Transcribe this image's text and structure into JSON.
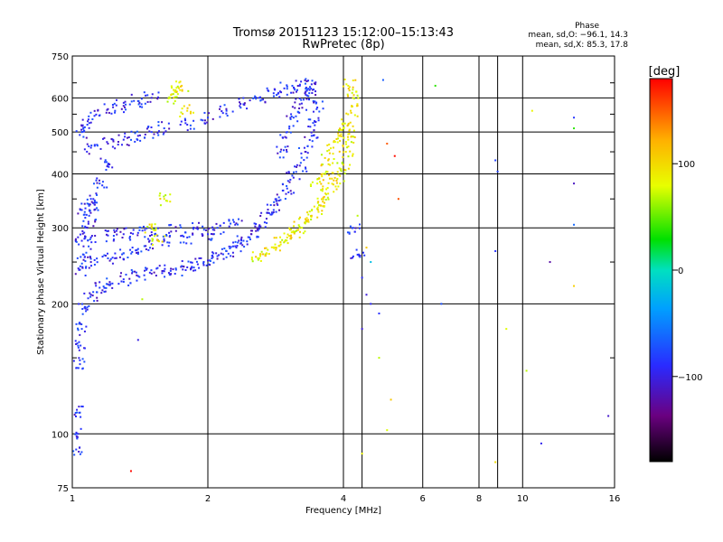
{
  "chart_data": {
    "type": "scatter",
    "title": "Tromsø 20151123 15:12:00–15:13:43",
    "subtitle": "RwPretec (8p)",
    "xlabel": "Frequency [MHz]",
    "ylabel": "Stationary phase Virtual Height [km]",
    "xscale": "log",
    "yscale": "log",
    "xlim": [
      1,
      16
    ],
    "ylim": [
      75,
      750
    ],
    "xticks": [
      1,
      2,
      4,
      6,
      8,
      10,
      16
    ],
    "xtick_labels": [
      "1",
      "2",
      "4",
      "6",
      "8",
      "10",
      "16"
    ],
    "yticks": [
      75,
      100,
      200,
      300,
      400,
      500,
      600,
      750
    ],
    "ytick_labels": [
      "75",
      "100",
      "200",
      "300",
      "400",
      "500",
      "600",
      "750"
    ],
    "grid": true,
    "phase_box": {
      "heading": "Phase",
      "line_o": "mean, sd,O: −96.1, 14.3",
      "line_x": "mean, sd,X:  85.3, 17.8"
    },
    "colorbar": {
      "label": "[deg]",
      "range": [
        -180,
        180
      ],
      "ticks": [
        100,
        0,
        -100
      ],
      "tick_labels": [
        "100",
        "0",
        "−100"
      ],
      "colormap": "rainbow (black→purple→blue→cyan→green→yellow→orange→red)"
    },
    "series": [
      {
        "group": "O-mode traces (blue, ~−100 deg)",
        "points": [
          [
            1.02,
            92
          ],
          [
            1.03,
            100
          ],
          [
            1.04,
            112
          ],
          [
            1.04,
            145
          ],
          [
            1.03,
            160
          ],
          [
            1.05,
            175
          ],
          [
            1.07,
            195
          ],
          [
            1.1,
            210
          ],
          [
            1.15,
            218
          ],
          [
            1.2,
            222
          ],
          [
            1.3,
            228
          ],
          [
            1.4,
            232
          ],
          [
            1.5,
            235
          ],
          [
            1.6,
            238
          ],
          [
            1.7,
            240
          ],
          [
            1.8,
            243
          ],
          [
            1.9,
            247
          ],
          [
            2.0,
            252
          ],
          [
            2.1,
            258
          ],
          [
            2.2,
            265
          ],
          [
            2.3,
            272
          ],
          [
            2.4,
            280
          ],
          [
            2.5,
            290
          ],
          [
            2.6,
            302
          ],
          [
            2.7,
            315
          ],
          [
            2.8,
            330
          ],
          [
            2.9,
            348
          ],
          [
            3.0,
            370
          ],
          [
            3.1,
            392
          ],
          [
            3.2,
            418
          ],
          [
            3.3,
            450
          ],
          [
            3.4,
            490
          ],
          [
            3.45,
            530
          ],
          [
            3.5,
            570
          ],
          [
            1.05,
            280
          ],
          [
            1.1,
            285
          ],
          [
            1.2,
            288
          ],
          [
            1.3,
            290
          ],
          [
            1.4,
            292
          ],
          [
            1.5,
            293
          ],
          [
            1.7,
            295
          ],
          [
            1.9,
            298
          ],
          [
            2.1,
            300
          ],
          [
            2.3,
            305
          ],
          [
            1.05,
            330
          ],
          [
            1.1,
            350
          ],
          [
            1.15,
            380
          ],
          [
            1.2,
            420
          ],
          [
            1.1,
            460
          ],
          [
            1.2,
            470
          ],
          [
            1.3,
            480
          ],
          [
            1.4,
            490
          ],
          [
            1.5,
            500
          ],
          [
            1.6,
            510
          ],
          [
            1.8,
            520
          ],
          [
            2.0,
            540
          ],
          [
            2.2,
            560
          ],
          [
            2.4,
            580
          ],
          [
            2.6,
            600
          ],
          [
            2.8,
            615
          ],
          [
            3.0,
            630
          ],
          [
            3.2,
            640
          ],
          [
            3.4,
            645
          ],
          [
            1.05,
            500
          ],
          [
            1.08,
            520
          ],
          [
            1.12,
            545
          ],
          [
            1.2,
            565
          ],
          [
            1.3,
            575
          ],
          [
            1.4,
            590
          ],
          [
            1.5,
            600
          ],
          [
            2.9,
            450
          ],
          [
            3.0,
            500
          ],
          [
            3.1,
            540
          ],
          [
            3.2,
            580
          ],
          [
            3.3,
            610
          ],
          [
            3.35,
            630
          ],
          [
            1.1,
            250
          ],
          [
            1.2,
            255
          ],
          [
            1.3,
            262
          ],
          [
            1.4,
            268
          ],
          [
            1.5,
            275
          ],
          [
            1.6,
            280
          ],
          [
            1.8,
            285
          ],
          [
            2.0,
            290
          ],
          [
            1.04,
            240
          ],
          [
            1.06,
            260
          ],
          [
            1.08,
            300
          ],
          [
            1.09,
            320
          ],
          [
            1.12,
            340
          ],
          [
            4.2,
            300
          ],
          [
            4.3,
            260
          ],
          [
            4.4,
            230
          ],
          [
            4.5,
            210
          ],
          [
            4.6,
            200
          ],
          [
            4.4,
            175
          ],
          [
            4.8,
            190
          ],
          [
            8.7,
            430
          ],
          [
            8.8,
            405
          ],
          [
            8.7,
            265
          ],
          [
            13.0,
            540
          ],
          [
            13.0,
            380
          ],
          [
            15.5,
            110
          ],
          [
            6.6,
            200
          ]
        ],
        "approx_phase_deg": -100
      },
      {
        "group": "X-mode traces (yellow, ~+85 deg)",
        "points": [
          [
            2.6,
            255
          ],
          [
            2.7,
            262
          ],
          [
            2.8,
            270
          ],
          [
            2.9,
            278
          ],
          [
            3.0,
            285
          ],
          [
            3.1,
            293
          ],
          [
            3.2,
            300
          ],
          [
            3.3,
            310
          ],
          [
            3.4,
            320
          ],
          [
            3.5,
            332
          ],
          [
            3.6,
            345
          ],
          [
            3.7,
            360
          ],
          [
            3.8,
            378
          ],
          [
            3.9,
            398
          ],
          [
            4.0,
            420
          ],
          [
            4.05,
            450
          ],
          [
            4.1,
            480
          ],
          [
            4.1,
            520
          ],
          [
            4.15,
            560
          ],
          [
            4.2,
            600
          ],
          [
            4.1,
            640
          ],
          [
            3.5,
            380
          ],
          [
            3.6,
            400
          ],
          [
            3.7,
            430
          ],
          [
            3.8,
            460
          ],
          [
            3.9,
            490
          ],
          [
            4.0,
            510
          ],
          [
            1.65,
            600
          ],
          [
            1.7,
            620
          ],
          [
            1.75,
            640
          ],
          [
            1.8,
            560
          ],
          [
            1.5,
            300
          ],
          [
            1.55,
            280
          ],
          [
            1.6,
            350
          ],
          [
            4.8,
            150
          ],
          [
            5.0,
            102
          ],
          [
            4.4,
            90
          ],
          [
            8.7,
            86
          ],
          [
            10.5,
            560
          ],
          [
            10.2,
            140
          ],
          [
            13.0,
            220
          ],
          [
            9.2,
            175
          ]
        ],
        "approx_phase_deg": 90
      },
      {
        "group": "Scattered other phases",
        "points": [
          [
            4.5,
            270
          ],
          [
            4.6,
            250
          ],
          [
            4.3,
            320
          ],
          [
            5.0,
            470
          ],
          [
            4.9,
            660
          ],
          [
            6.4,
            640
          ],
          [
            5.2,
            440
          ],
          [
            5.3,
            350
          ],
          [
            5.1,
            120
          ],
          [
            1.35,
            82
          ],
          [
            1.4,
            165
          ],
          [
            1.43,
            205
          ],
          [
            11.0,
            95
          ],
          [
            11.5,
            250
          ],
          [
            13.0,
            305
          ],
          [
            13.0,
            510
          ]
        ],
        "approx_phase_deg": null
      }
    ]
  }
}
